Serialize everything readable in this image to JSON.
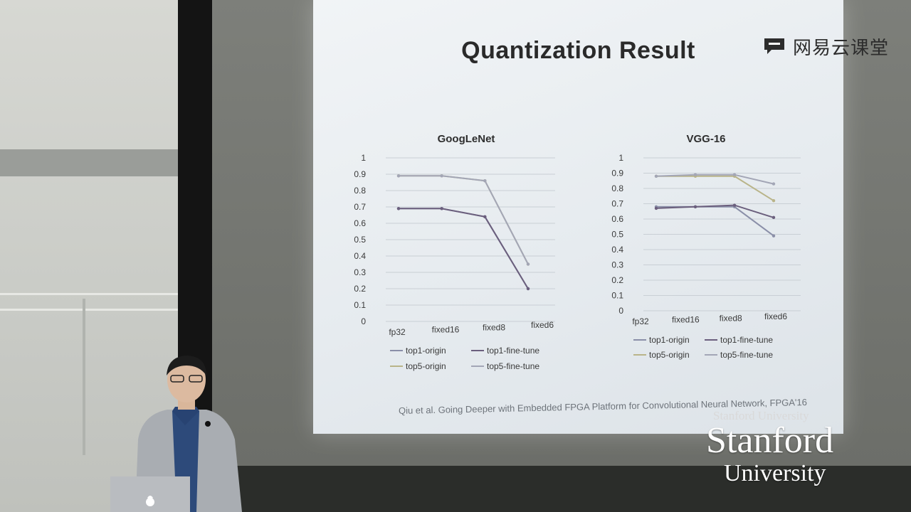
{
  "slide": {
    "title": "Quantization Result",
    "citation": "Qiu et al.  Going Deeper with Embedded FPGA Platform for Convolutional Neural Network, FPGA'16"
  },
  "watermark": {
    "text": "网易云课堂",
    "icon": "chat-bubble-icon"
  },
  "logo": {
    "small": "Stanford University",
    "line1": "Stanford",
    "line2": "University"
  },
  "colors": {
    "top1_origin": "#8a8fa8",
    "top5_origin": "#b9b489",
    "top1_fine_tune": "#6b5f7d",
    "top5_fine_tune": "#a3a6b6"
  },
  "chart_data": [
    {
      "type": "line",
      "title": "GoogLeNet",
      "categories": [
        "fp32",
        "fixed16",
        "fixed8",
        "fixed6"
      ],
      "yticks": [
        "0",
        "0.1",
        "0.2",
        "0.3",
        "0.4",
        "0.5",
        "0.6",
        "0.7",
        "0.8",
        "0.9",
        "1"
      ],
      "ylim": [
        0,
        1
      ],
      "grid": true,
      "legend_position": "bottom",
      "series": [
        {
          "name": "top1-origin",
          "values": [
            0.69,
            0.69,
            0.64,
            0.2
          ]
        },
        {
          "name": "top5-origin",
          "values": [
            0.89,
            0.89,
            0.86,
            0.35
          ]
        },
        {
          "name": "top1-fine-tune",
          "values": [
            0.69,
            0.69,
            0.64,
            0.2
          ]
        },
        {
          "name": "top5-fine-tune",
          "values": [
            0.89,
            0.89,
            0.86,
            0.35
          ]
        }
      ]
    },
    {
      "type": "line",
      "title": "VGG-16",
      "categories": [
        "fp32",
        "fixed16",
        "fixed8",
        "fixed6"
      ],
      "yticks": [
        "0",
        "0.1",
        "0.2",
        "0.3",
        "0.4",
        "0.5",
        "0.6",
        "0.7",
        "0.8",
        "0.9",
        "1"
      ],
      "ylim": [
        0,
        1
      ],
      "grid": true,
      "legend_position": "bottom",
      "series": [
        {
          "name": "top1-origin",
          "values": [
            0.68,
            0.68,
            0.68,
            0.49
          ]
        },
        {
          "name": "top1-fine-tune",
          "values": [
            0.67,
            0.68,
            0.69,
            0.61
          ]
        },
        {
          "name": "top5-origin",
          "values": [
            0.88,
            0.88,
            0.88,
            0.72
          ]
        },
        {
          "name": "top5-fine-tune",
          "values": [
            0.88,
            0.89,
            0.89,
            0.83
          ]
        }
      ]
    }
  ]
}
